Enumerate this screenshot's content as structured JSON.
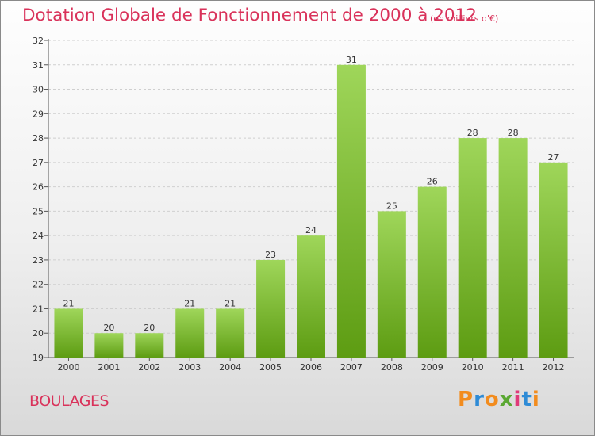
{
  "title": "Dotation Globale de Fonctionnement de 2000 à 2012",
  "subtitle": "(en milliers d'€)",
  "city": "BOULAGES",
  "logo": {
    "text": "Proxiti",
    "colors": [
      "#f28c1e",
      "#2e8bd6",
      "#f28c1e",
      "#5aa832",
      "#e03a7a",
      "#2e8bd6",
      "#f28c1e"
    ]
  },
  "colors": {
    "bar_light": "#9fd65a",
    "bar_dark": "#5d9c12",
    "accent": "#d9325a"
  },
  "chart_data": {
    "type": "bar",
    "categories": [
      "2000",
      "2001",
      "2002",
      "2003",
      "2004",
      "2005",
      "2006",
      "2007",
      "2008",
      "2009",
      "2010",
      "2011",
      "2012"
    ],
    "values": [
      21,
      20,
      20,
      21,
      21,
      23,
      24,
      31,
      25,
      26,
      28,
      28,
      27
    ],
    "title": "Dotation Globale de Fonctionnement de 2000 à 2012",
    "xlabel": "",
    "ylabel": "",
    "ylim": [
      19,
      32
    ],
    "yticks": [
      19,
      20,
      21,
      22,
      23,
      24,
      25,
      26,
      27,
      28,
      29,
      30,
      31,
      32
    ],
    "grid": "horizontal-dashed",
    "legend": "none"
  }
}
